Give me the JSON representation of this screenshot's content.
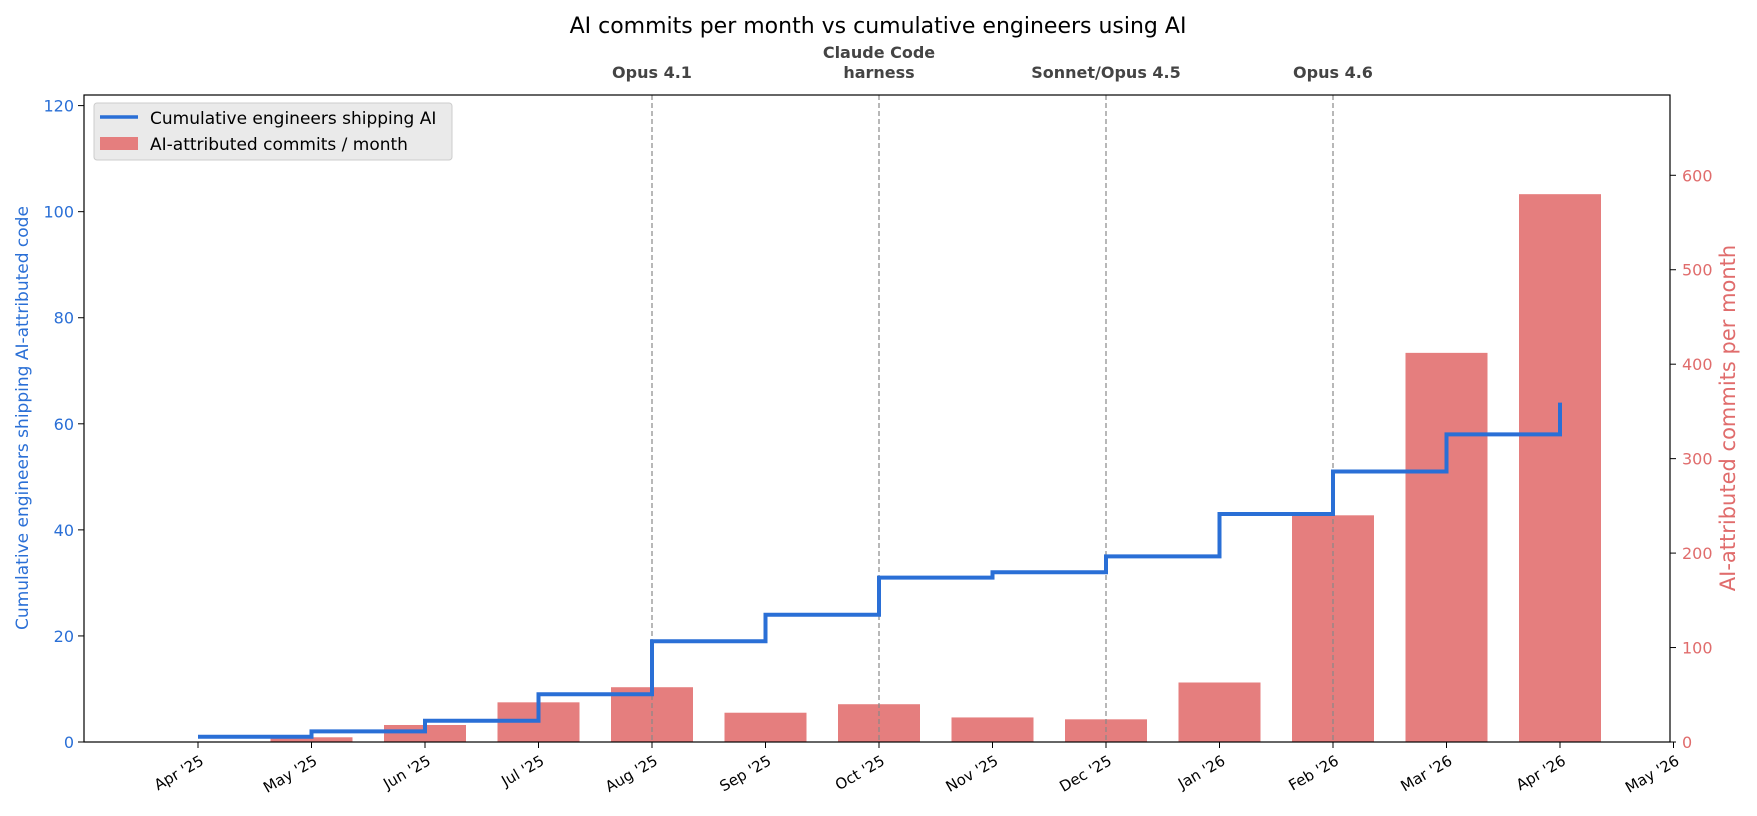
{
  "chart_data": {
    "type": "bar",
    "title": "AI commits per month vs cumulative engineers using AI",
    "x_ticks": [
      "Apr '25",
      "May '25",
      "Jun '25",
      "Jul '25",
      "Aug '25",
      "Sep '25",
      "Oct '25",
      "Nov '25",
      "Dec '25",
      "Jan '26",
      "Feb '26",
      "Mar '26",
      "Apr '26",
      "May '26"
    ],
    "left_axis": {
      "label": "Cumulative engineers shipping AI-attributed code",
      "ylim": [
        0,
        122
      ],
      "ticks": [
        "0",
        "20",
        "40",
        "60",
        "80",
        "100",
        "120"
      ],
      "color": "#2a6fd6"
    },
    "right_axis": {
      "label": "AI-attributed commits per month",
      "ylim": [
        0,
        685
      ],
      "ticks": [
        "0",
        "100",
        "200",
        "300",
        "400",
        "500",
        "600"
      ],
      "color": "#e06c6c"
    },
    "series": [
      {
        "name": "Cumulative engineers shipping AI",
        "type": "step",
        "axis": "left",
        "color": "#2a6fd6",
        "points": [
          {
            "x": "Apr '25",
            "y": 1
          },
          {
            "x": "May '25",
            "y": 2
          },
          {
            "x": "Jun '25",
            "y": 4
          },
          {
            "x": "Jul '25",
            "y": 9
          },
          {
            "x": "Aug '25",
            "y": 19
          },
          {
            "x": "Sep '25",
            "y": 24
          },
          {
            "x": "Oct '25",
            "y": 31
          },
          {
            "x": "Nov '25",
            "y": 32
          },
          {
            "x": "Dec '25",
            "y": 35
          },
          {
            "x": "Jan '26",
            "y": 43
          },
          {
            "x": "Feb '26",
            "y": 51
          },
          {
            "x": "Mar '26",
            "y": 58
          },
          {
            "x": "Apr '26",
            "y": 64
          }
        ]
      },
      {
        "name": "AI-attributed commits / month",
        "type": "bar",
        "axis": "right",
        "color": "#e57e7e",
        "points": [
          {
            "x": "May '25",
            "y": 5
          },
          {
            "x": "Jun '25",
            "y": 18
          },
          {
            "x": "Jul '25",
            "y": 42
          },
          {
            "x": "Aug '25",
            "y": 58
          },
          {
            "x": "Sep '25",
            "y": 31
          },
          {
            "x": "Oct '25",
            "y": 40
          },
          {
            "x": "Nov '25",
            "y": 26
          },
          {
            "x": "Dec '25",
            "y": 24
          },
          {
            "x": "Jan '26",
            "y": 63
          },
          {
            "x": "Feb '26",
            "y": 240
          },
          {
            "x": "Mar '26",
            "y": 412
          },
          {
            "x": "Apr '26",
            "y": 580
          }
        ]
      }
    ],
    "annotations": [
      {
        "x": "Aug '25",
        "lines": [
          "Opus 4.1"
        ]
      },
      {
        "x": "Oct '25",
        "lines": [
          "Claude Code",
          "harness"
        ]
      },
      {
        "x": "Dec '25",
        "lines": [
          "Sonnet/Opus 4.5"
        ]
      },
      {
        "x": "Feb '26",
        "lines": [
          "Opus 4.6"
        ]
      }
    ],
    "legend": {
      "placement": "top-left",
      "entries": [
        "Cumulative engineers shipping AI",
        "AI-attributed commits / month"
      ]
    },
    "grid": false
  }
}
